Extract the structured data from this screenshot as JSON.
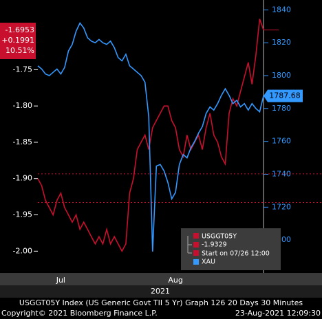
{
  "chart_data": {
    "type": "line",
    "categories": [
      null,
      null,
      null,
      null,
      null,
      null,
      "Jul",
      null,
      null,
      null,
      null,
      null,
      null,
      null,
      null,
      null,
      null,
      null,
      null,
      null,
      null,
      null,
      null,
      null,
      null,
      null,
      null,
      null,
      null,
      null,
      null,
      null,
      null,
      null,
      null,
      null,
      "Aug",
      null,
      null,
      null,
      null,
      null,
      null,
      null,
      null,
      null,
      null,
      null,
      null,
      null,
      null,
      null,
      null,
      null,
      null,
      null,
      null,
      null,
      null,
      null
    ],
    "x_axis_year": "2021",
    "series": [
      {
        "name": "USGGT05Y",
        "color": "#c8102e",
        "axis": "y",
        "values": [
          -1.9,
          -1.91,
          -1.93,
          -1.94,
          -1.95,
          -1.93,
          -1.92,
          -1.94,
          -1.95,
          -1.96,
          -1.95,
          -1.97,
          -1.96,
          -1.97,
          -1.98,
          -1.99,
          -1.98,
          -1.99,
          -1.97,
          -1.99,
          -1.98,
          -1.99,
          -2.0,
          -1.99,
          -1.92,
          -1.9,
          -1.86,
          -1.85,
          -1.84,
          -1.86,
          -1.83,
          -1.82,
          -1.81,
          -1.8,
          -1.8,
          -1.82,
          -1.83,
          -1.86,
          -1.87,
          -1.84,
          -1.86,
          -1.85,
          -1.84,
          -1.86,
          -1.83,
          -1.81,
          -1.84,
          -1.85,
          -1.87,
          -1.88,
          -1.81,
          -1.79,
          -1.8,
          -1.78,
          -1.76,
          -1.74,
          -1.77,
          -1.73,
          -1.68,
          -1.6953
        ]
      },
      {
        "name": "XAU",
        "color": "#3399ff",
        "axis": "y2",
        "values": [
          1806,
          1804,
          1801,
          1800,
          1802,
          1804,
          1801,
          1805,
          1815,
          1819,
          1827,
          1832,
          1829,
          1823,
          1821,
          1820,
          1822,
          1820,
          1819,
          1821,
          1817,
          1811,
          1809,
          1813,
          1806,
          1804,
          1802,
          1800,
          1796,
          1775,
          1693,
          1745,
          1746,
          1742,
          1735,
          1725,
          1729,
          1746,
          1752,
          1750,
          1756,
          1760,
          1765,
          1769,
          1777,
          1781,
          1779,
          1783,
          1788,
          1792,
          1788,
          1783,
          1785,
          1781,
          1783,
          1779,
          1783,
          1780,
          1778,
          1787.68
        ]
      }
    ],
    "ylim": [
      -2.03,
      -1.654
    ],
    "yticks": [
      {
        "value": -2,
        "label": "-2.00"
      },
      -1.95,
      {
        "value": -1.9,
        "label": "-1.90"
      },
      -1.85,
      {
        "value": -1.8,
        "label": "-1.80"
      },
      -1.75
    ],
    "y2lim": [
      1680,
      1846
    ],
    "y2ticks": [
      1700,
      1720,
      1740,
      1760,
      1780,
      1800,
      1820,
      1840
    ],
    "current_change": "+0.1991",
    "current_change_pct": "10.51%",
    "start_value": -1.9329,
    "start_label": "Start on 07/26 12:00",
    "reference_lines": [
      -1.8935
    ],
    "footer_title": "USGGT05Y Index (US Generic Govt TII 5 Yr) Graph 126 20 Days 30 Minutes",
    "copyright": "Copyright© 2021 Bloomberg Finance L.P.",
    "timestamp": "23-Aug-2021 12:09:30"
  }
}
